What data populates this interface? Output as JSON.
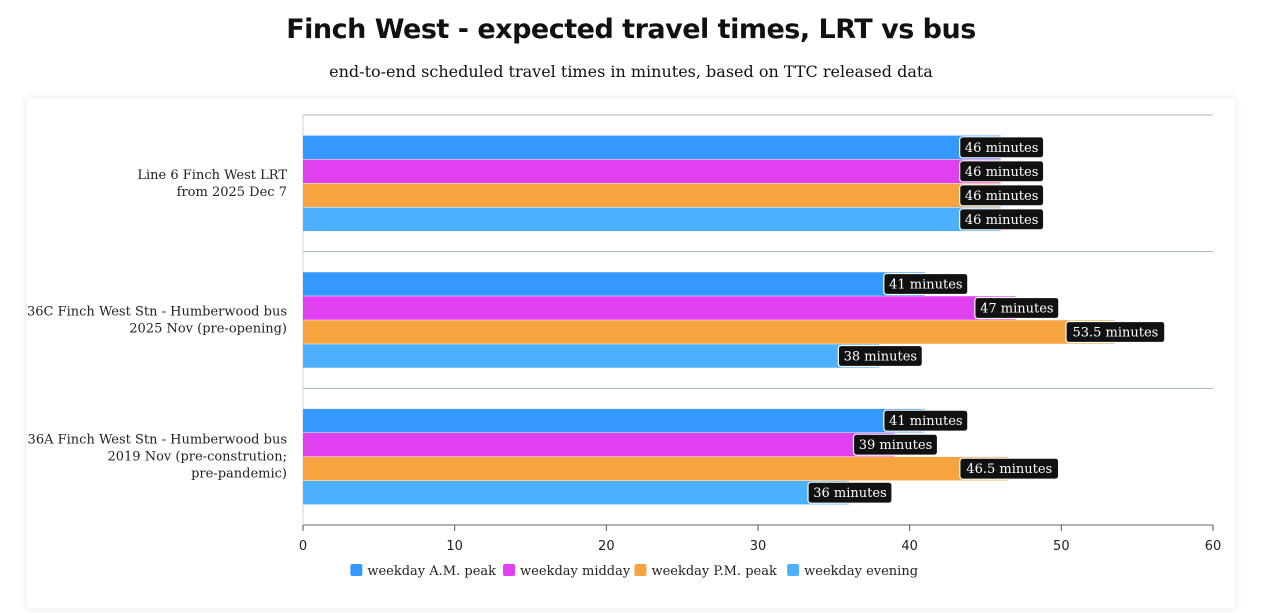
{
  "chart_data": {
    "type": "bar",
    "orientation": "horizontal",
    "title": "Finch West - expected travel times, LRT vs bus",
    "subtitle": "end-to-end scheduled travel times in minutes, based on TTC released data",
    "categories": [
      [
        "Line 6 Finch West LRT",
        "from 2025 Dec 7"
      ],
      [
        "36C Finch West Stn - Humberwood bus",
        "2025 Nov (pre-opening)"
      ],
      [
        "36A Finch West Stn - Humberwood bus",
        "2019 Nov (pre-constrution;",
        "pre-pandemic)"
      ]
    ],
    "series": [
      {
        "name": "weekday A.M. peak",
        "color": "#3399ff",
        "values": [
          46,
          41,
          41
        ],
        "labels": [
          "46 minutes",
          "41 minutes",
          "41 minutes"
        ]
      },
      {
        "name": "weekday midday",
        "color": "#e040f0",
        "values": [
          46,
          47,
          39
        ],
        "labels": [
          "46 minutes",
          "47 minutes",
          "39 minutes"
        ]
      },
      {
        "name": "weekday P.M. peak",
        "color": "#f7a340",
        "values": [
          46,
          53.5,
          46.5
        ],
        "labels": [
          "46 minutes",
          "53.5 minutes",
          "46.5 minutes"
        ]
      },
      {
        "name": "weekday evening",
        "color": "#4db0ff",
        "values": [
          46,
          38,
          36
        ],
        "labels": [
          "46 minutes",
          "38 minutes",
          "36 minutes"
        ]
      }
    ],
    "xlim": [
      0,
      60
    ],
    "xticks": [
      "0",
      "10",
      "20",
      "30",
      "40",
      "50",
      "60"
    ],
    "xlabel": "",
    "ylabel": "",
    "legend_position": "bottom"
  }
}
